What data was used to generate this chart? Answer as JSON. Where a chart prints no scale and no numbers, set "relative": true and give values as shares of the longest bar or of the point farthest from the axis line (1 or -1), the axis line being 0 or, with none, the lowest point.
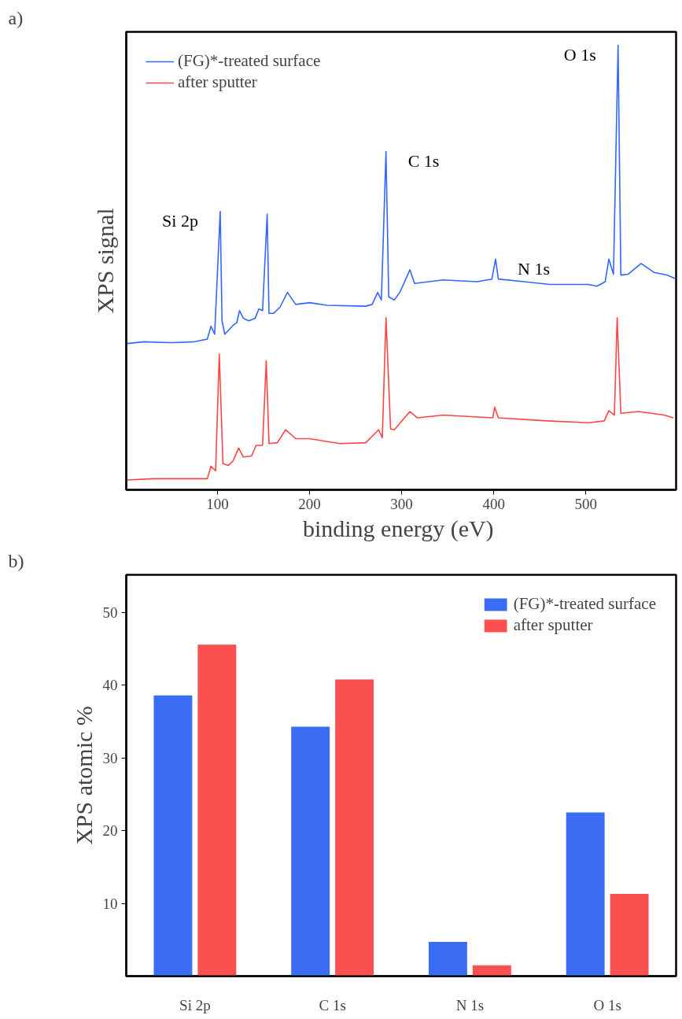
{
  "chart_data": [
    {
      "type": "line",
      "title": "a)",
      "xlabel": "binding energy  (eV)",
      "ylabel": "XPS signal",
      "relative": true,
      "xlim": [
        1,
        598
      ],
      "xticks": [
        100,
        200,
        300,
        400,
        500
      ],
      "tick_labels": "x",
      "grid": false,
      "legend": "top left",
      "series": [
        {
          "name": "(FG)*-treated surface",
          "color": "#3366ff",
          "x": [
            2,
            20,
            50,
            75,
            89,
            93,
            97,
            103,
            105,
            108,
            117,
            121,
            124,
            128,
            134,
            141,
            145,
            149,
            154,
            156,
            161,
            168,
            176,
            185,
            200,
            219,
            261,
            268,
            274,
            278,
            283,
            286,
            292,
            298,
            309,
            314,
            345,
            382,
            398,
            402,
            405,
            433,
            461,
            503,
            512,
            521,
            525,
            530,
            535,
            538,
            546,
            560,
            574,
            588,
            597
          ],
          "values": [
            0.329,
            0.333,
            0.331,
            0.333,
            0.339,
            0.368,
            0.35,
            0.626,
            0.38,
            0.35,
            0.37,
            0.376,
            0.403,
            0.386,
            0.38,
            0.386,
            0.407,
            0.403,
            0.62,
            0.397,
            0.397,
            0.411,
            0.444,
            0.417,
            0.421,
            0.415,
            0.413,
            0.417,
            0.444,
            0.427,
            0.761,
            0.434,
            0.427,
            0.444,
            0.495,
            0.464,
            0.472,
            0.468,
            0.474,
            0.519,
            0.474,
            0.468,
            0.462,
            0.462,
            0.458,
            0.468,
            0.519,
            0.485,
            1.0,
            0.483,
            0.485,
            0.509,
            0.489,
            0.483,
            0.475
          ]
        },
        {
          "name": "after sputter",
          "color": "#ff4444",
          "x": [
            2,
            30,
            60,
            89,
            93,
            98,
            102,
            106,
            112,
            117,
            123,
            128,
            137,
            142,
            149,
            153,
            156,
            165,
            174,
            185,
            200,
            233,
            261,
            275,
            279,
            283,
            288,
            292,
            309,
            317,
            345,
            399,
            401,
            405,
            458,
            503,
            520,
            525,
            531,
            534,
            538,
            557,
            585,
            595
          ],
          "values": [
            0.022,
            0.025,
            0.025,
            0.025,
            0.053,
            0.043,
            0.305,
            0.059,
            0.055,
            0.065,
            0.094,
            0.074,
            0.076,
            0.1,
            0.1,
            0.29,
            0.104,
            0.106,
            0.135,
            0.115,
            0.115,
            0.104,
            0.106,
            0.135,
            0.117,
            0.387,
            0.137,
            0.135,
            0.176,
            0.162,
            0.168,
            0.162,
            0.186,
            0.162,
            0.155,
            0.151,
            0.155,
            0.178,
            0.168,
            0.387,
            0.172,
            0.176,
            0.168,
            0.162
          ]
        }
      ],
      "annotations": [
        {
          "text": "Si 2p",
          "x": 103,
          "y": 0.626
        },
        {
          "text": "C 1s",
          "x": 283,
          "y": 0.761
        },
        {
          "text": "N 1s",
          "x": 402,
          "y": 0.519
        },
        {
          "text": "O 1s",
          "x": 535,
          "y": 1.0
        }
      ]
    },
    {
      "type": "bar",
      "title": "b)",
      "ylabel": "XPS atomic %",
      "categories": [
        "Si 2p",
        "C 1s",
        "N 1s",
        "O 1s"
      ],
      "ylim": [
        0,
        55.2
      ],
      "yticks": [
        10,
        20,
        30,
        40,
        50
      ],
      "grid": false,
      "legend": "top right",
      "series": [
        {
          "name": "(FG)*-treated surface",
          "color": "#3a6cf4",
          "values": [
            38.6,
            34.3,
            4.7,
            22.5
          ]
        },
        {
          "name": "after sputter",
          "color": "#fa5050",
          "values": [
            45.6,
            40.8,
            1.5,
            11.3
          ]
        }
      ]
    }
  ]
}
